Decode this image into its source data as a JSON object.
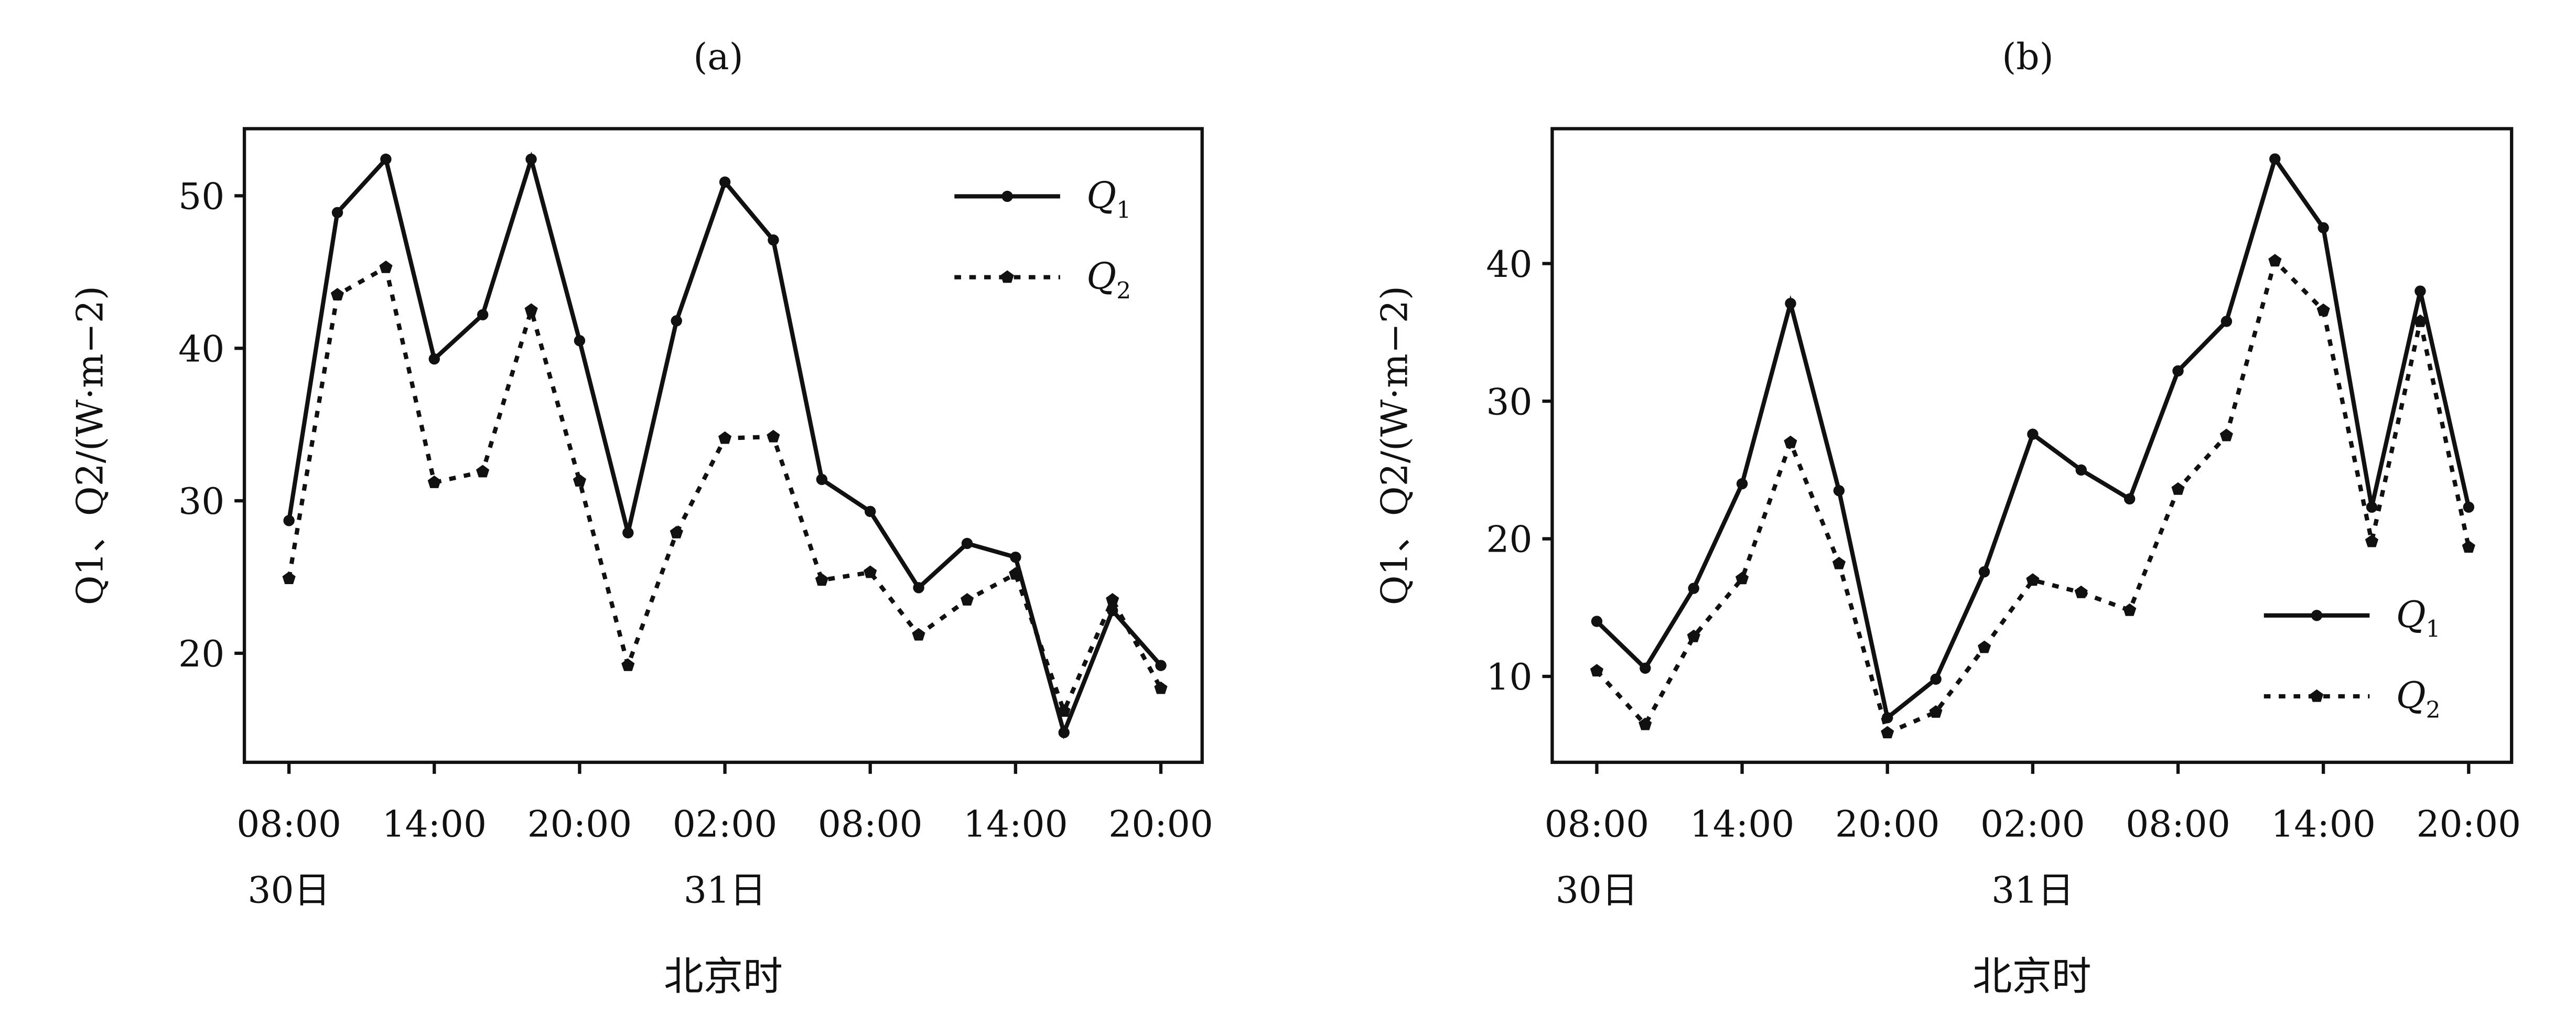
{
  "chart_data": [
    {
      "type": "line",
      "title": "(a)",
      "xlabel": "北京时",
      "ylabel": "Q1、Q2/(W·m−2)",
      "ylabel_parts": {
        "q1": "Q",
        "q1_sub": "1",
        "sep": "、",
        "q2": "Q",
        "q2_sub": "2",
        "unit": "/(W·m",
        "exp": "−2",
        "close": ")"
      },
      "x": [
        "30日08:00",
        "10:00",
        "12:00",
        "14:00",
        "16:00",
        "18:00",
        "20:00",
        "22:00",
        "31日00:00",
        "02:00",
        "04:00",
        "06:00",
        "08:00",
        "10:00",
        "12:00",
        "14:00",
        "16:00",
        "18:00",
        "20:00"
      ],
      "xticks": [
        {
          "index": 0,
          "label": "08:00",
          "date": "30日"
        },
        {
          "index": 3,
          "label": "14:00"
        },
        {
          "index": 6,
          "label": "20:00"
        },
        {
          "index": 9,
          "label": "02:00",
          "date": "31日"
        },
        {
          "index": 12,
          "label": "08:00"
        },
        {
          "index": 15,
          "label": "14:00"
        },
        {
          "index": 18,
          "label": "20:00"
        }
      ],
      "yticks": [
        20,
        30,
        40,
        50
      ],
      "ylim": [
        12.85,
        54.4
      ],
      "legend_position": "top-right",
      "series": [
        {
          "name": "Q1",
          "sub": "1",
          "style": "solid",
          "marker": "circle",
          "values": [
            28.7,
            48.9,
            52.4,
            39.3,
            42.2,
            52.4,
            40.5,
            27.9,
            41.8,
            50.9,
            47.1,
            31.4,
            29.3,
            24.3,
            27.2,
            26.3,
            14.8,
            22.8,
            19.2
          ]
        },
        {
          "name": "Q2",
          "sub": "2",
          "style": "dotted",
          "marker": "pentagon",
          "values": [
            24.9,
            43.5,
            45.3,
            31.2,
            31.9,
            42.5,
            31.3,
            19.2,
            27.9,
            34.1,
            34.2,
            24.8,
            25.3,
            21.2,
            23.5,
            25.2,
            16.2,
            23.5,
            17.7
          ]
        }
      ]
    },
    {
      "type": "line",
      "title": "(b)",
      "xlabel": "北京时",
      "ylabel": "Q1、Q2/(W·m−2)",
      "ylabel_parts": {
        "q1": "Q",
        "q1_sub": "1",
        "sep": "、",
        "q2": "Q",
        "q2_sub": "2",
        "unit": "/(W·m",
        "exp": "−2",
        "close": ")"
      },
      "x": [
        "30日08:00",
        "10:00",
        "12:00",
        "14:00",
        "16:00",
        "18:00",
        "20:00",
        "22:00",
        "31日00:00",
        "02:00",
        "04:00",
        "06:00",
        "08:00",
        "10:00",
        "12:00",
        "14:00",
        "16:00",
        "18:00",
        "20:00"
      ],
      "xticks": [
        {
          "index": 0,
          "label": "08:00",
          "date": "30日"
        },
        {
          "index": 3,
          "label": "14:00"
        },
        {
          "index": 6,
          "label": "20:00"
        },
        {
          "index": 9,
          "label": "02:00",
          "date": "31日"
        },
        {
          "index": 12,
          "label": "08:00"
        },
        {
          "index": 15,
          "label": "14:00"
        },
        {
          "index": 18,
          "label": "20:00"
        }
      ],
      "yticks": [
        10,
        20,
        30,
        40
      ],
      "ylim": [
        3.76,
        49.8
      ],
      "legend_position": "lower-right",
      "series": [
        {
          "name": "Q1",
          "sub": "1",
          "style": "solid",
          "marker": "circle",
          "values": [
            14.0,
            10.6,
            16.4,
            24.0,
            37.1,
            23.5,
            7.0,
            9.8,
            17.6,
            27.6,
            25.0,
            22.9,
            32.2,
            35.8,
            47.6,
            42.6,
            22.3,
            38.0,
            22.3
          ]
        },
        {
          "name": "Q2",
          "sub": "2",
          "style": "dotted",
          "marker": "pentagon",
          "values": [
            10.4,
            6.5,
            12.9,
            17.1,
            27.0,
            18.2,
            5.9,
            7.4,
            12.1,
            17.0,
            16.1,
            14.8,
            23.6,
            27.5,
            40.2,
            36.6,
            19.8,
            35.8,
            19.4
          ]
        }
      ]
    }
  ]
}
